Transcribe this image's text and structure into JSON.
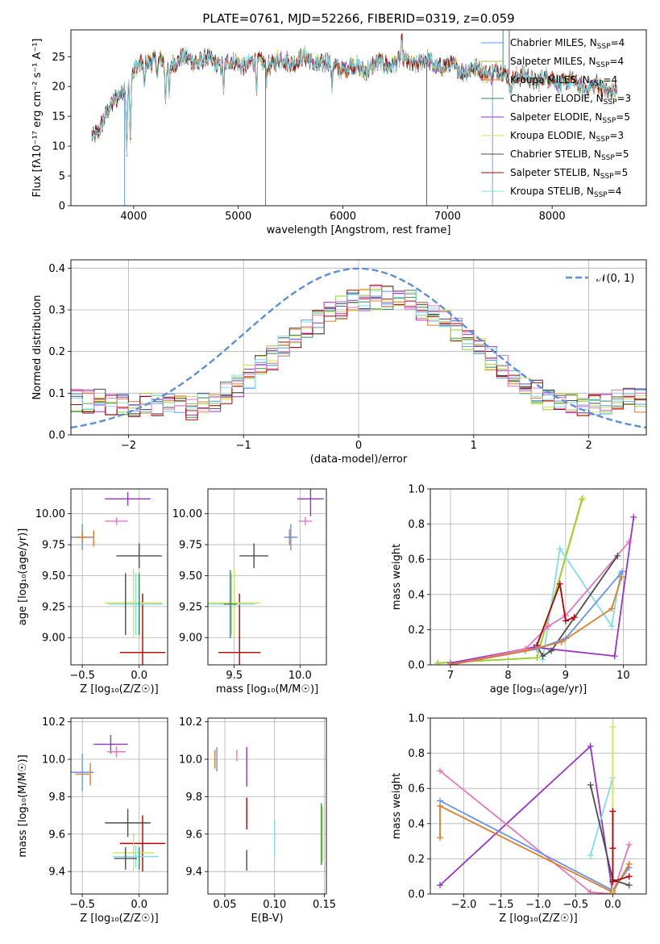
{
  "colors": {
    "cmiles": "#6495ed",
    "smiles": "#9acd32",
    "kmiles": "#e07b28",
    "celodie": "#2e8b57",
    "selodie": "#9932cc",
    "kelodie": "#d4e157",
    "cstelib": "#4d4d4d",
    "sstelib": "#b30000",
    "kstelib": "#80deea",
    "pink": "#e377c2",
    "gauss": "#5b8fd9"
  },
  "chart_data": [
    {
      "id": "spectrum",
      "type": "line",
      "title": "PLATE=0761, MJD=52266, FIBERID=0319, z=0.059",
      "xlabel": "wavelength [Angstrom, rest frame]",
      "ylabel": "Flux [fλ10⁻¹⁷ erg cm⁻² s⁻¹ A⁻¹]",
      "xlim": [
        3400,
        8900
      ],
      "ylim": [
        0,
        29.5
      ],
      "xticks": [
        "4000",
        "5000",
        "6000",
        "7000",
        "8000"
      ],
      "yticks": [
        "0",
        "5",
        "10",
        "15",
        "20",
        "25"
      ],
      "grid": false,
      "legend_position": "top-right",
      "legend": [
        {
          "label": "Chabrier MILES, N",
          "sub": "SSP",
          "tail": "=4",
          "color": "cmiles"
        },
        {
          "label": "Salpeter MILES, N",
          "sub": "SSP",
          "tail": "=4",
          "color": "smiles"
        },
        {
          "label": "Kroupa MILES, N",
          "sub": "SSP",
          "tail": "=4",
          "color": "kmiles"
        },
        {
          "label": "Chabrier ELODIE, N",
          "sub": "SSP",
          "tail": "=3",
          "color": "celodie"
        },
        {
          "label": "Salpeter ELODIE, N",
          "sub": "SSP",
          "tail": "=5",
          "color": "selodie"
        },
        {
          "label": "Kroupa ELODIE, N",
          "sub": "SSP",
          "tail": "=3",
          "color": "kelodie"
        },
        {
          "label": "Chabrier STELIB, N",
          "sub": "SSP",
          "tail": "=5",
          "color": "cstelib"
        },
        {
          "label": "Salpeter STELIB, N",
          "sub": "SSP",
          "tail": "=5",
          "color": "sstelib"
        },
        {
          "label": "Kroupa STELIB, N",
          "sub": "SSP",
          "tail": "=4",
          "color": "kstelib"
        }
      ],
      "continuum": [
        [
          3600,
          11.5
        ],
        [
          3700,
          14
        ],
        [
          3800,
          17
        ],
        [
          3900,
          20
        ],
        [
          4000,
          22
        ],
        [
          4100,
          24.5
        ],
        [
          4300,
          24
        ],
        [
          4500,
          24.5
        ],
        [
          4800,
          24
        ],
        [
          5000,
          23.8
        ],
        [
          5300,
          24
        ],
        [
          5600,
          24.5
        ],
        [
          5900,
          23.5
        ],
        [
          6200,
          23
        ],
        [
          6500,
          24.2
        ],
        [
          6800,
          24
        ],
        [
          7100,
          23
        ],
        [
          7400,
          22.5
        ],
        [
          7700,
          21.5
        ],
        [
          8000,
          21
        ],
        [
          8300,
          20.3
        ],
        [
          8600,
          19.3
        ]
      ],
      "absorption_lines": [
        [
          3934,
          11
        ],
        [
          3968,
          10
        ],
        [
          4102,
          4
        ],
        [
          4227,
          3
        ],
        [
          4304,
          6
        ],
        [
          4340,
          5
        ],
        [
          4861,
          4
        ],
        [
          5175,
          4
        ],
        [
          5270,
          2
        ],
        [
          5895,
          4
        ],
        [
          6563,
          -3
        ],
        [
          7600,
          3
        ]
      ],
      "spikes": [
        [
          3912,
          0
        ],
        [
          5260,
          0
        ],
        [
          6800,
          0
        ],
        [
          7430,
          0
        ],
        [
          7530,
          29.5
        ],
        [
          7590,
          29.5
        ]
      ]
    },
    {
      "id": "residuals",
      "type": "histogram",
      "xlabel": "(data-model)/error",
      "ylabel": "Normed distribution",
      "xlim": [
        -2.5,
        2.5
      ],
      "ylim": [
        0,
        0.42
      ],
      "xticks": [
        "−2",
        "−1",
        "0",
        "1",
        "2"
      ],
      "yticks": [
        "0.0",
        "0.1",
        "0.2",
        "0.3",
        "0.4"
      ],
      "grid": true,
      "legend_position": "top-right",
      "legend_label": "𝒩(0, 1)",
      "bins": 50
    },
    {
      "id": "age-vs-Z",
      "type": "scatter",
      "xlabel": "Z [log₁₀(Z/Z☉)]",
      "ylabel": "age  [log₁₀(age/yr)]",
      "xlim": [
        -0.6,
        0.25
      ],
      "ylim": [
        8.78,
        10.2
      ],
      "xticks": [
        "−0.5",
        "0.0"
      ],
      "yticks": [
        "9.00",
        "9.25",
        "9.50",
        "9.75",
        "10.00"
      ],
      "grid": true,
      "points": [
        {
          "c": "cmiles",
          "x": -0.5,
          "y": 9.81,
          "xe": 0.1,
          "ye": 0.21
        },
        {
          "c": "kmiles",
          "x": -0.5,
          "y": 9.81,
          "xe": 0.06,
          "ye": 0.1
        },
        {
          "c": "kmiles",
          "x": -0.4,
          "y": 9.8,
          "xe": 0.0,
          "ye": 0.13
        },
        {
          "c": "selodie",
          "x": -0.1,
          "y": 10.12,
          "xe": 0.2,
          "ye": 0.11
        },
        {
          "c": "pink",
          "x": -0.2,
          "y": 9.94,
          "xe": 0.1,
          "ye": 0.06
        },
        {
          "c": "cstelib",
          "x": 0.0,
          "y": 9.66,
          "xe": 0.2,
          "ye": 0.2
        },
        {
          "c": "sstelib",
          "x": 0.03,
          "y": 8.88,
          "xe": 0.2,
          "ye": 0.95
        },
        {
          "c": "kelodie",
          "x": -0.05,
          "y": 9.28,
          "xe": 0.25,
          "ye": 0.55
        },
        {
          "c": "kstelib",
          "x": -0.03,
          "y": 9.27,
          "xe": 0.24,
          "ye": 0.5
        },
        {
          "c": "celodie",
          "x": 0.0,
          "y": 9.27,
          "xe": 0.0,
          "ye": 0.5
        },
        {
          "c": "cstelib",
          "x": -0.12,
          "y": 9.27,
          "xe": 0.0,
          "ye": 0.5
        }
      ]
    },
    {
      "id": "age-vs-mass",
      "type": "scatter",
      "xlabel": "mass [log₁₀(M/M☉)]",
      "ylabel": "",
      "xlim": [
        9.3,
        10.2
      ],
      "ylim": [
        8.78,
        10.2
      ],
      "xticks": [
        "9.5",
        "10.0"
      ],
      "yticks": [
        "9.00",
        "9.25",
        "9.50",
        "9.75",
        "10.00"
      ],
      "grid": true,
      "points": [
        {
          "c": "cmiles",
          "x": 9.93,
          "y": 9.81,
          "xe": 0.05,
          "ye": 0.21
        },
        {
          "c": "kmiles",
          "x": 9.92,
          "y": 9.81,
          "xe": 0.0,
          "ye": 0.13
        },
        {
          "c": "selodie",
          "x": 10.08,
          "y": 10.12,
          "xe": 0.1,
          "ye": 0.28
        },
        {
          "c": "pink",
          "x": 10.04,
          "y": 9.94,
          "xe": 0.05,
          "ye": 0.07
        },
        {
          "c": "cstelib",
          "x": 9.65,
          "y": 9.66,
          "xe": 0.11,
          "ye": 0.2
        },
        {
          "c": "sstelib",
          "x": 9.54,
          "y": 8.88,
          "xe": 0.16,
          "ye": 0.95
        },
        {
          "c": "kelodie",
          "x": 9.5,
          "y": 9.28,
          "xe": 0.2,
          "ye": 0.55
        },
        {
          "c": "kstelib",
          "x": 9.48,
          "y": 9.27,
          "xe": 0.18,
          "ye": 0.5
        },
        {
          "c": "celodie",
          "x": 9.47,
          "y": 9.27,
          "xe": 0.05,
          "ye": 0.55
        }
      ]
    },
    {
      "id": "weights-vs-age",
      "type": "line",
      "xlabel": "age  [log₁₀(age/yr)]",
      "ylabel": "mass weight",
      "xlim": [
        6.65,
        10.4
      ],
      "ylim": [
        0,
        1.0
      ],
      "xticks": [
        "7",
        "8",
        "9",
        "10"
      ],
      "yticks": [
        "0.0",
        "0.2",
        "0.4",
        "0.6",
        "0.8",
        "1.0"
      ],
      "grid": true,
      "series": [
        {
          "c": "kelodie",
          "pts": [
            [
              6.78,
              0.01
            ],
            [
              8.5,
              0.04
            ],
            [
              9.3,
              0.95
            ]
          ]
        },
        {
          "c": "smiles",
          "pts": [
            [
              6.78,
              0.01
            ],
            [
              8.5,
              0.04
            ],
            [
              9.28,
              0.94
            ]
          ]
        },
        {
          "c": "kstelib",
          "pts": [
            [
              8.6,
              0.03
            ],
            [
              8.9,
              0.66
            ],
            [
              9.8,
              0.22
            ],
            [
              9.95,
              0.52
            ]
          ]
        },
        {
          "c": "selodie",
          "pts": [
            [
              7.0,
              0.01
            ],
            [
              8.45,
              0.1
            ],
            [
              9.85,
              0.05
            ],
            [
              10.18,
              0.84
            ]
          ]
        },
        {
          "c": "pink",
          "pts": [
            [
              7.0,
              0.0
            ],
            [
              8.3,
              0.09
            ],
            [
              8.7,
              0.22
            ],
            [
              9.0,
              0.28
            ],
            [
              10.1,
              0.7
            ]
          ]
        },
        {
          "c": "cstelib",
          "pts": [
            [
              8.5,
              0.11
            ],
            [
              8.6,
              0.05
            ],
            [
              8.75,
              0.08
            ],
            [
              9.9,
              0.62
            ]
          ]
        },
        {
          "c": "sstelib",
          "pts": [
            [
              8.5,
              0.11
            ],
            [
              8.9,
              0.46
            ],
            [
              9.0,
              0.25
            ],
            [
              9.15,
              0.27
            ]
          ]
        },
        {
          "c": "cmiles",
          "pts": [
            [
              7.0,
              0.0
            ],
            [
              8.5,
              0.09
            ],
            [
              9.0,
              0.15
            ],
            [
              9.98,
              0.53
            ]
          ]
        },
        {
          "c": "kmiles",
          "pts": [
            [
              7.0,
              0.0
            ],
            [
              8.3,
              0.08
            ],
            [
              8.93,
              0.13
            ],
            [
              9.8,
              0.32
            ],
            [
              9.97,
              0.5
            ]
          ]
        }
      ]
    },
    {
      "id": "mass-vs-Z",
      "type": "scatter",
      "xlabel": "Z [log₁₀(Z/Z☉)]",
      "ylabel": "mass [log₁₀(M/M☉)]",
      "xlim": [
        -0.6,
        0.25
      ],
      "ylim": [
        9.28,
        10.22
      ],
      "xticks": [
        "−0.5",
        "0.0"
      ],
      "yticks": [
        "9.4",
        "9.6",
        "9.8",
        "10.0",
        "10.2"
      ],
      "grid": true,
      "points": [
        {
          "c": "cmiles",
          "x": -0.5,
          "y": 9.93,
          "xe": 0.1,
          "ye": 0.2
        },
        {
          "c": "kmiles",
          "x": -0.43,
          "y": 9.92,
          "xe": 0.0,
          "ye": 0.12
        },
        {
          "c": "kmiles",
          "x": -0.5,
          "y": 9.92,
          "xe": 0.06,
          "ye": 0.0
        },
        {
          "c": "selodie",
          "x": -0.25,
          "y": 10.08,
          "xe": 0.15,
          "ye": 0.1
        },
        {
          "c": "pink",
          "x": -0.2,
          "y": 10.04,
          "xe": 0.08,
          "ye": 0.06
        },
        {
          "c": "cstelib",
          "x": -0.1,
          "y": 9.66,
          "xe": 0.2,
          "ye": 0.15
        },
        {
          "c": "sstelib",
          "x": 0.03,
          "y": 9.55,
          "xe": 0.2,
          "ye": 0.3
        },
        {
          "c": "kelodie",
          "x": -0.05,
          "y": 9.5,
          "xe": 0.18,
          "ye": 0.2
        },
        {
          "c": "kstelib",
          "x": -0.03,
          "y": 9.48,
          "xe": 0.2,
          "ye": 0.12
        },
        {
          "c": "cstelib",
          "x": -0.12,
          "y": 9.47,
          "xe": 0.1,
          "ye": 0.12
        },
        {
          "c": "celodie",
          "x": 0.0,
          "y": 9.47,
          "xe": 0.0,
          "ye": 0.12
        }
      ]
    },
    {
      "id": "mass-vs-ebv",
      "type": "scatter",
      "xlabel": "E(B-V)",
      "ylabel": "",
      "xlim": [
        0.033,
        0.152
      ],
      "ylim": [
        9.28,
        10.22
      ],
      "xticks": [
        "0.05",
        "0.10",
        "0.15"
      ],
      "yticks": [
        "9.4",
        "9.6",
        "9.8",
        "10.0",
        "10.2"
      ],
      "grid": true,
      "points": [
        {
          "c": "cmiles",
          "x": 0.042,
          "y": 10.0,
          "xe": 0.0,
          "ye": 0.13
        },
        {
          "c": "kmiles",
          "x": 0.04,
          "y": 10.0,
          "xe": 0.0,
          "ye": 0.1
        },
        {
          "c": "pink",
          "x": 0.062,
          "y": 10.02,
          "xe": 0.0,
          "ye": 0.06
        },
        {
          "c": "selodie",
          "x": 0.072,
          "y": 9.96,
          "xe": 0.0,
          "ye": 0.21
        },
        {
          "c": "sstelib",
          "x": 0.072,
          "y": 9.71,
          "xe": 0.0,
          "ye": 0.17
        },
        {
          "c": "kstelib",
          "x": 0.1,
          "y": 9.58,
          "xe": 0.0,
          "ye": 0.18
        },
        {
          "c": "cstelib",
          "x": 0.072,
          "y": 9.46,
          "xe": 0.0,
          "ye": 0.11
        },
        {
          "c": "kelodie",
          "x": 0.148,
          "y": 9.6,
          "xe": 0.0,
          "ye": 0.3
        },
        {
          "c": "celodie",
          "x": 0.147,
          "y": 9.6,
          "xe": 0.0,
          "ye": 0.33
        }
      ]
    },
    {
      "id": "weights-vs-Z",
      "type": "line",
      "xlabel": "Z [log₁₀(Z/Z☉)]",
      "ylabel": "mass weight",
      "xlim": [
        -2.45,
        0.45
      ],
      "ylim": [
        0,
        1.0
      ],
      "xticks": [
        "−2.0",
        "−1.5",
        "−1.0",
        "−0.5",
        "0.0"
      ],
      "yticks": [
        "0.0",
        "0.2",
        "0.4",
        "0.6",
        "0.8",
        "1.0"
      ],
      "grid": true,
      "series": [
        {
          "c": "selodie",
          "pts": [
            [
              -2.32,
              0.05
            ],
            [
              -0.3,
              0.84
            ],
            [
              0.0,
              0.0
            ]
          ]
        },
        {
          "c": "pink",
          "pts": [
            [
              -2.32,
              0.7
            ],
            [
              -0.3,
              0.01
            ],
            [
              0.0,
              0.0
            ],
            [
              0.22,
              0.28
            ]
          ]
        },
        {
          "c": "cmiles",
          "pts": [
            [
              -2.32,
              0.53
            ],
            [
              0.0,
              0.02
            ],
            [
              0.22,
              0.15
            ]
          ]
        },
        {
          "c": "kmiles",
          "pts": [
            [
              -2.32,
              0.32
            ],
            [
              -2.32,
              0.5
            ],
            [
              0.0,
              0.01
            ],
            [
              0.22,
              0.17
            ]
          ]
        },
        {
          "c": "kstelib",
          "pts": [
            [
              -0.3,
              0.22
            ],
            [
              0.0,
              0.66
            ]
          ]
        },
        {
          "c": "kelodie",
          "pts": [
            [
              0.0,
              0.95
            ],
            [
              0.0,
              0.0
            ]
          ]
        },
        {
          "c": "cstelib",
          "pts": [
            [
              -0.3,
              0.62
            ],
            [
              0.0,
              0.08
            ],
            [
              0.22,
              0.05
            ]
          ]
        },
        {
          "c": "sstelib",
          "pts": [
            [
              0.0,
              0.47
            ],
            [
              0.0,
              0.26
            ],
            [
              0.0,
              0.07
            ],
            [
              0.22,
              0.1
            ]
          ]
        }
      ]
    }
  ]
}
